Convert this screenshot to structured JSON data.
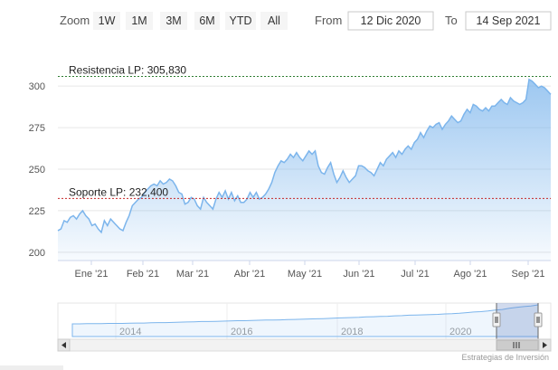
{
  "toolbar": {
    "zoom_label": "Zoom",
    "buttons": [
      {
        "label": "1W"
      },
      {
        "label": "1M"
      },
      {
        "label": "3M"
      },
      {
        "label": "6M"
      },
      {
        "label": "YTD"
      },
      {
        "label": "All"
      }
    ],
    "from_label": "From",
    "from_value": "12 Dic 2020",
    "to_label": "To",
    "to_value": "14 Sep 2021"
  },
  "colors": {
    "line": "#7cb5ec",
    "resistance": "#2e7d32",
    "support": "#c62828"
  },
  "chart_data": {
    "type": "area",
    "ylim": [
      195,
      305
    ],
    "yticks": [
      "200",
      "225",
      "250",
      "275",
      "300"
    ],
    "xticks": [
      "Ene '21",
      "Feb '21",
      "Mar '21",
      "Abr '21",
      "May '21",
      "Jun '21",
      "Jul '21",
      "Ago '21",
      "Sep '21"
    ],
    "series": [
      {
        "values": [
          213,
          214,
          219,
          218,
          221,
          222,
          220,
          223,
          225,
          222,
          220,
          216,
          217,
          214,
          212,
          219,
          216,
          220,
          218,
          216,
          214,
          213,
          218,
          222,
          228,
          230,
          232,
          233,
          236,
          238,
          240,
          241,
          240,
          243,
          241,
          242,
          244,
          243,
          240,
          236,
          235,
          229,
          230,
          233,
          232,
          228,
          226,
          233,
          230,
          228,
          226,
          232,
          236,
          233,
          237,
          232,
          236,
          231,
          234,
          230,
          230,
          232,
          236,
          233,
          236,
          232,
          233,
          235,
          238,
          242,
          248,
          252,
          255,
          254,
          256,
          259,
          257,
          260,
          257,
          255,
          258,
          261,
          259,
          261,
          252,
          248,
          247,
          251,
          254,
          247,
          242,
          245,
          249,
          245,
          242,
          244,
          246,
          252,
          252,
          251,
          249,
          248,
          246,
          250,
          254,
          252,
          256,
          258,
          260,
          257,
          261,
          259,
          262,
          264,
          262,
          266,
          268,
          272,
          269,
          273,
          276,
          275,
          277,
          278,
          274,
          277,
          279,
          282,
          280,
          278,
          279,
          283,
          286,
          284,
          289,
          288,
          286,
          285,
          287,
          285,
          288,
          288,
          290,
          292,
          290,
          289,
          293,
          291,
          290,
          289,
          290,
          292,
          304,
          303,
          301,
          299,
          300,
          299,
          297,
          295
        ]
      }
    ],
    "annotations": [
      {
        "label": "Resistencia LP: 305,830",
        "value": 305.83
      },
      {
        "label": "Soporte LP: 232,400",
        "value": 232.4
      }
    ],
    "navigator": {
      "years": [
        "2014",
        "2016",
        "2018",
        "2020"
      ],
      "values": [
        60,
        60,
        61,
        61,
        61,
        62,
        62,
        62,
        63,
        64,
        64,
        65,
        66,
        66,
        67,
        68,
        69,
        70,
        71,
        71,
        72,
        73,
        74,
        75,
        75,
        76,
        77,
        78,
        78,
        79,
        80,
        81,
        82,
        83,
        84,
        85,
        86,
        88,
        89,
        90,
        91,
        93,
        94,
        95,
        96,
        98,
        99,
        101,
        102,
        103,
        104,
        105,
        107,
        108,
        110,
        113,
        116,
        118,
        121,
        125,
        128,
        134,
        138,
        142,
        145,
        150
      ]
    }
  },
  "credits": "Estrategias de Inversión"
}
